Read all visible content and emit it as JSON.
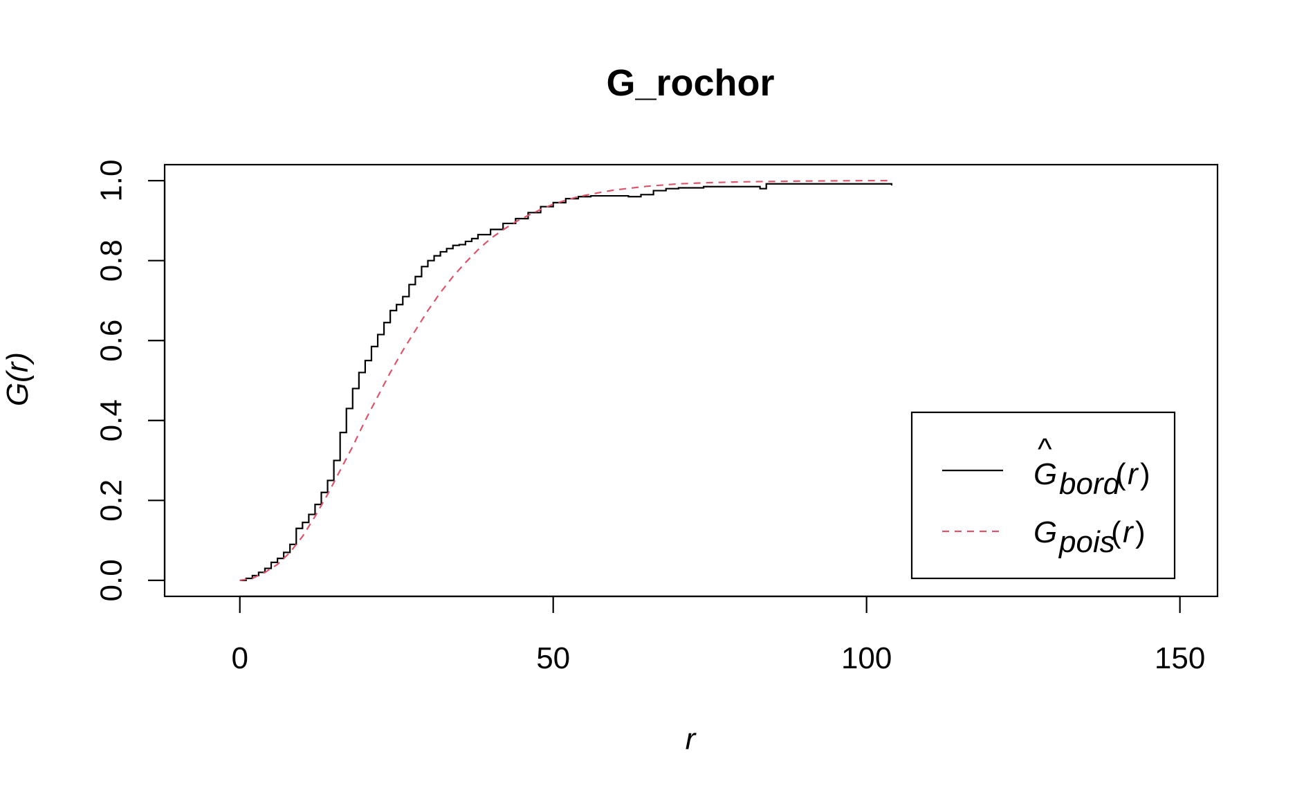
{
  "chart_data": {
    "type": "line",
    "title": "G_rochor",
    "xlabel": "r",
    "ylabel": "G(r)",
    "xlim": [
      -12,
      156
    ],
    "ylim": [
      -0.04,
      1.04
    ],
    "x_ticks": [
      0,
      50,
      100,
      150
    ],
    "x_tick_labels": [
      "0",
      "50",
      "100",
      "150"
    ],
    "y_ticks": [
      0,
      0.2,
      0.4,
      0.6,
      0.8,
      1.0
    ],
    "y_tick_labels": [
      "0.0",
      "0.2",
      "0.4",
      "0.6",
      "0.8",
      "1.0"
    ],
    "legend_position": "bottom-right",
    "series": [
      {
        "name": "Ĝ_bord(r)",
        "color": "#000000",
        "dash": "solid",
        "x": [
          0,
          1,
          2,
          3,
          4,
          5,
          6,
          7,
          8,
          9,
          10,
          11,
          12,
          13,
          14,
          15,
          16,
          17,
          18,
          19,
          20,
          21,
          22,
          23,
          24,
          25,
          26,
          27,
          28,
          29,
          30,
          31,
          32,
          33,
          34,
          35,
          36,
          37,
          38,
          40,
          42,
          44,
          46,
          48,
          50,
          52,
          54,
          56,
          58,
          60,
          62,
          64,
          66,
          68,
          70,
          74,
          78,
          82,
          83,
          84,
          90,
          96,
          104
        ],
        "y": [
          0.0,
          0.005,
          0.012,
          0.02,
          0.03,
          0.045,
          0.055,
          0.07,
          0.09,
          0.13,
          0.145,
          0.165,
          0.19,
          0.22,
          0.25,
          0.3,
          0.37,
          0.43,
          0.48,
          0.52,
          0.55,
          0.585,
          0.615,
          0.645,
          0.675,
          0.69,
          0.71,
          0.74,
          0.76,
          0.785,
          0.8,
          0.812,
          0.822,
          0.83,
          0.838,
          0.84,
          0.848,
          0.855,
          0.865,
          0.878,
          0.893,
          0.905,
          0.92,
          0.935,
          0.945,
          0.955,
          0.96,
          0.962,
          0.962,
          0.962,
          0.96,
          0.965,
          0.975,
          0.98,
          0.982,
          0.985,
          0.985,
          0.985,
          0.98,
          0.992,
          0.992,
          0.992,
          0.988
        ]
      },
      {
        "name": "G_pois(r)",
        "color": "#DF536B",
        "dash": "dashed",
        "x": [
          0,
          2,
          4,
          6,
          8,
          10,
          12,
          14,
          16,
          18,
          20,
          22,
          24,
          26,
          28,
          30,
          32,
          34,
          36,
          38,
          40,
          42,
          44,
          46,
          48,
          50,
          52,
          54,
          56,
          58,
          60,
          65,
          70,
          75,
          80,
          85,
          90,
          95,
          100,
          104
        ],
        "y": [
          0.0,
          0.005,
          0.02,
          0.04,
          0.07,
          0.11,
          0.16,
          0.215,
          0.275,
          0.335,
          0.4,
          0.46,
          0.52,
          0.575,
          0.625,
          0.675,
          0.72,
          0.76,
          0.795,
          0.827,
          0.855,
          0.877,
          0.897,
          0.913,
          0.928,
          0.941,
          0.951,
          0.96,
          0.966,
          0.972,
          0.977,
          0.986,
          0.992,
          0.995,
          0.997,
          0.998,
          0.999,
          0.9995,
          1.0,
          1.0
        ]
      }
    ]
  }
}
